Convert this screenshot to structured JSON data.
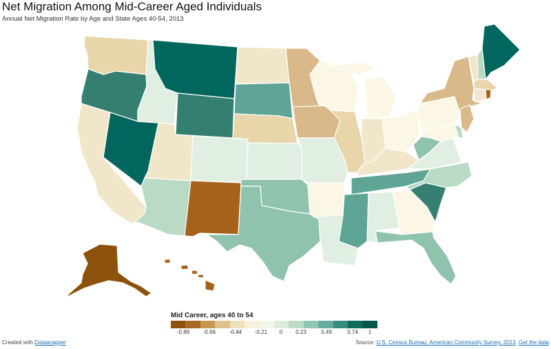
{
  "title": "Net Migration Among Mid-Career Aged Individuals",
  "subtitle": "Annual Net Migration Rate by Age and State Ages 40-54, 2013",
  "legend": {
    "title": "Mid Career, ages 40 to 54",
    "ticks": [
      "-0.89",
      "-0.66",
      "-0.44",
      "-0.21",
      "0",
      "0.23",
      "0.49",
      "0.74",
      "1"
    ],
    "colors": [
      "#8c510a",
      "#a96a24",
      "#c59750",
      "#dfc18a",
      "#efe0bc",
      "#f7f1dc",
      "#f4f6ea",
      "#dcecdb",
      "#bcdcc8",
      "#93c7b5",
      "#66ad9c",
      "#3a8c7d",
      "#0f6b5e",
      "#00574a"
    ]
  },
  "footer": {
    "created_with": "Created with",
    "datawrapper_link": "Datawrapper",
    "source_label": "Source:",
    "source_link": "U.S. Census Bureau, American Community Survey, 2013",
    "source_sep": ",",
    "get_data_link": "Get the data"
  },
  "palette": {
    "dk_brown": "#8c510a",
    "brown": "#a6611a",
    "tan": "#d9b98a",
    "lt_tan": "#e8d5aa",
    "beige": "#f1e6c9",
    "cream": "#fbf7e4",
    "pale_green": "#e0efe1",
    "lt_green": "#b9dac5",
    "green": "#8fc3ae",
    "md_teal": "#5ea595",
    "teal": "#357f71",
    "dk_teal": "#01665e"
  },
  "chart_data": {
    "type": "choropleth",
    "metric": "Annual Net Migration Rate",
    "legend_range": [
      -0.89,
      1
    ],
    "states": [
      {
        "name": "Washington",
        "value": -0.25
      },
      {
        "name": "Oregon",
        "value": 0.65
      },
      {
        "name": "California",
        "value": -0.2
      },
      {
        "name": "Nevada",
        "value": 0.95
      },
      {
        "name": "Idaho",
        "value": 0.3
      },
      {
        "name": "Montana",
        "value": 1.0
      },
      {
        "name": "Wyoming",
        "value": 0.8
      },
      {
        "name": "Utah",
        "value": -0.3
      },
      {
        "name": "Colorado",
        "value": 0.1
      },
      {
        "name": "Arizona",
        "value": 0.35
      },
      {
        "name": "New Mexico",
        "value": -0.8
      },
      {
        "name": "North Dakota",
        "value": -0.3
      },
      {
        "name": "South Dakota",
        "value": 0.65
      },
      {
        "name": "Nebraska",
        "value": -0.4
      },
      {
        "name": "Kansas",
        "value": 0.15
      },
      {
        "name": "Oklahoma",
        "value": 0.5
      },
      {
        "name": "Texas",
        "value": 0.45
      },
      {
        "name": "Minnesota",
        "value": -0.5
      },
      {
        "name": "Iowa",
        "value": -0.55
      },
      {
        "name": "Missouri",
        "value": 0.15
      },
      {
        "name": "Arkansas",
        "value": 0.0
      },
      {
        "name": "Louisiana",
        "value": 0.2
      },
      {
        "name": "Wisconsin",
        "value": 0.0
      },
      {
        "name": "Illinois",
        "value": -0.45
      },
      {
        "name": "Michigan",
        "value": 0.0
      },
      {
        "name": "Indiana",
        "value": -0.25
      },
      {
        "name": "Ohio",
        "value": 0.0
      },
      {
        "name": "Kentucky",
        "value": -0.3
      },
      {
        "name": "Tennessee",
        "value": 0.5
      },
      {
        "name": "Mississippi",
        "value": 0.55
      },
      {
        "name": "Alabama",
        "value": 0.2
      },
      {
        "name": "Georgia",
        "value": 0.0
      },
      {
        "name": "Florida",
        "value": 0.45
      },
      {
        "name": "South Carolina",
        "value": 0.8
      },
      {
        "name": "North Carolina",
        "value": 0.35
      },
      {
        "name": "Virginia",
        "value": 0.15
      },
      {
        "name": "West Virginia",
        "value": 0.55
      },
      {
        "name": "Pennsylvania",
        "value": 0.0
      },
      {
        "name": "New York",
        "value": -0.5
      },
      {
        "name": "New Jersey",
        "value": -0.5
      },
      {
        "name": "Maryland",
        "value": 0.0
      },
      {
        "name": "Delaware",
        "value": 0.3
      },
      {
        "name": "Vermont",
        "value": -0.3
      },
      {
        "name": "New Hampshire",
        "value": 0.3
      },
      {
        "name": "Maine",
        "value": 1.0
      },
      {
        "name": "Massachusetts",
        "value": -0.35
      },
      {
        "name": "Connecticut",
        "value": -0.2
      },
      {
        "name": "Rhode Island",
        "value": -0.75
      },
      {
        "name": "Alaska",
        "value": -0.89
      },
      {
        "name": "Hawaii",
        "value": -0.75
      }
    ]
  }
}
